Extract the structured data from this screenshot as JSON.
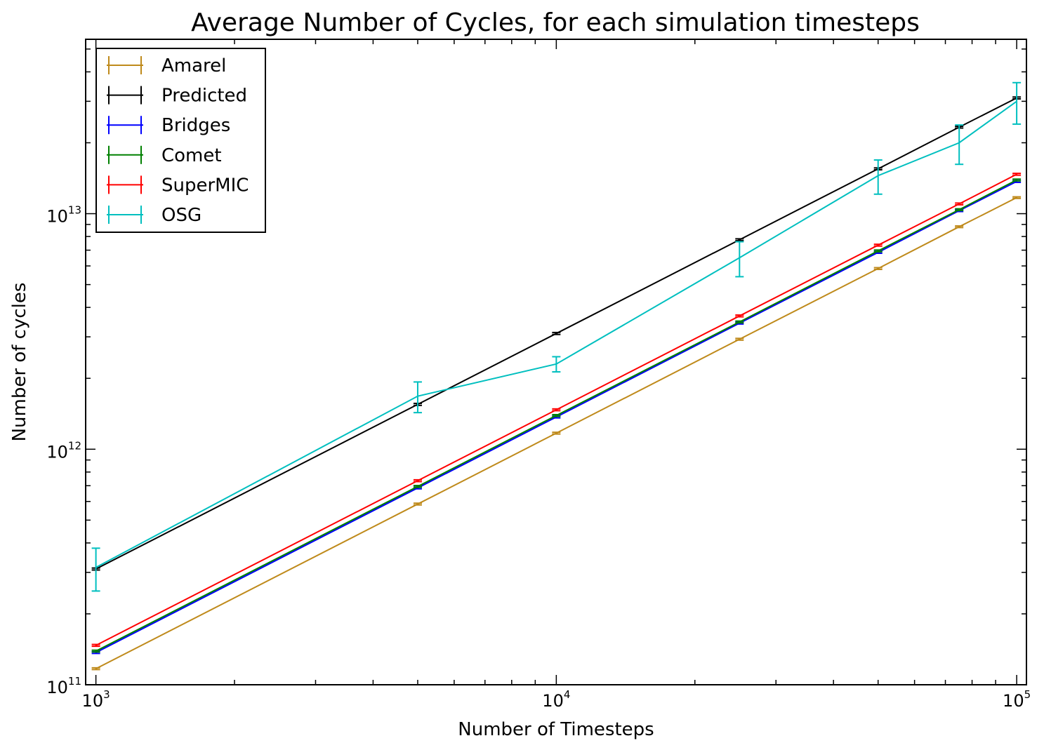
{
  "chart_data": {
    "type": "line",
    "title": "Average Number of Cycles, for each simulation timesteps",
    "xlabel": "Number of Timesteps",
    "ylabel": "Number of cycles",
    "xscale": "log",
    "yscale": "log",
    "xlim": [
      950,
      105000
    ],
    "ylim": [
      100000000000,
      55000000000000
    ],
    "x_ticks": [
      {
        "value": 1000,
        "base": "10",
        "exp": "3"
      },
      {
        "value": 10000,
        "base": "10",
        "exp": "4"
      },
      {
        "value": 100000,
        "base": "10",
        "exp": "5"
      }
    ],
    "y_ticks": [
      {
        "value": 100000000000,
        "base": "10",
        "exp": "11"
      },
      {
        "value": 1000000000000,
        "base": "10",
        "exp": "12"
      },
      {
        "value": 10000000000000,
        "base": "10",
        "exp": "13"
      }
    ],
    "grid": false,
    "legend_position": "top-left",
    "x": [
      1000,
      5000,
      10000,
      25000,
      50000,
      75000,
      100000
    ],
    "series": [
      {
        "name": "Amarel",
        "color": "#bf8a1b",
        "values": [
          117000000000.0,
          585000000000.0,
          1170000000000.0,
          2930000000000.0,
          5850000000000.0,
          8800000000000.0,
          11700000000000.0
        ],
        "errors": [
          1000000000.0,
          5000000000.0,
          10000000000.0,
          25000000000.0,
          50000000000.0,
          70000000000.0,
          90000000000.0
        ]
      },
      {
        "name": "Predicted",
        "color": "#000000",
        "values": [
          310000000000.0,
          1550000000000.0,
          3100000000000.0,
          7750000000000.0,
          15500000000000.0,
          23300000000000.0,
          31000000000000.0
        ],
        "errors": [
          3000000000.0,
          15000000000.0,
          30000000000.0,
          70000000000.0,
          140000000000.0,
          200000000000.0,
          280000000000.0
        ]
      },
      {
        "name": "Bridges",
        "color": "#0000ff",
        "values": [
          137000000000.0,
          685000000000.0,
          1370000000000.0,
          3430000000000.0,
          6850000000000.0,
          10300000000000.0,
          13700000000000.0
        ],
        "errors": [
          1200000000.0,
          6000000000.0,
          12000000000.0,
          30000000000.0,
          60000000000.0,
          90000000000.0,
          120000000000.0
        ]
      },
      {
        "name": "Comet",
        "color": "#008000",
        "values": [
          139000000000.0,
          695000000000.0,
          1390000000000.0,
          3470000000000.0,
          6950000000000.0,
          10400000000000.0,
          13900000000000.0
        ],
        "errors": [
          1200000000.0,
          6000000000.0,
          12000000000.0,
          30000000000.0,
          60000000000.0,
          90000000000.0,
          120000000000.0
        ]
      },
      {
        "name": "SuperMIC",
        "color": "#ff0000",
        "values": [
          147000000000.0,
          735000000000.0,
          1470000000000.0,
          3680000000000.0,
          7350000000000.0,
          11000000000000.0,
          14700000000000.0
        ],
        "errors": [
          1300000000.0,
          6500000000.0,
          13000000000.0,
          32000000000.0,
          65000000000.0,
          95000000000.0,
          130000000000.0
        ]
      },
      {
        "name": "OSG",
        "color": "#00bfbf",
        "x": [
          1000,
          5000,
          10000,
          25000,
          50000,
          75000,
          100000
        ],
        "values": [
          315000000000.0,
          1680000000000.0,
          2300000000000.0,
          6500000000000.0,
          14500000000000.0,
          20000000000000.0,
          30000000000000.0
        ],
        "errors": [
          65000000000.0,
          250000000000.0,
          170000000000.0,
          1100000000000.0,
          2400000000000.0,
          3800000000000.0,
          6000000000000.0
        ]
      }
    ]
  }
}
